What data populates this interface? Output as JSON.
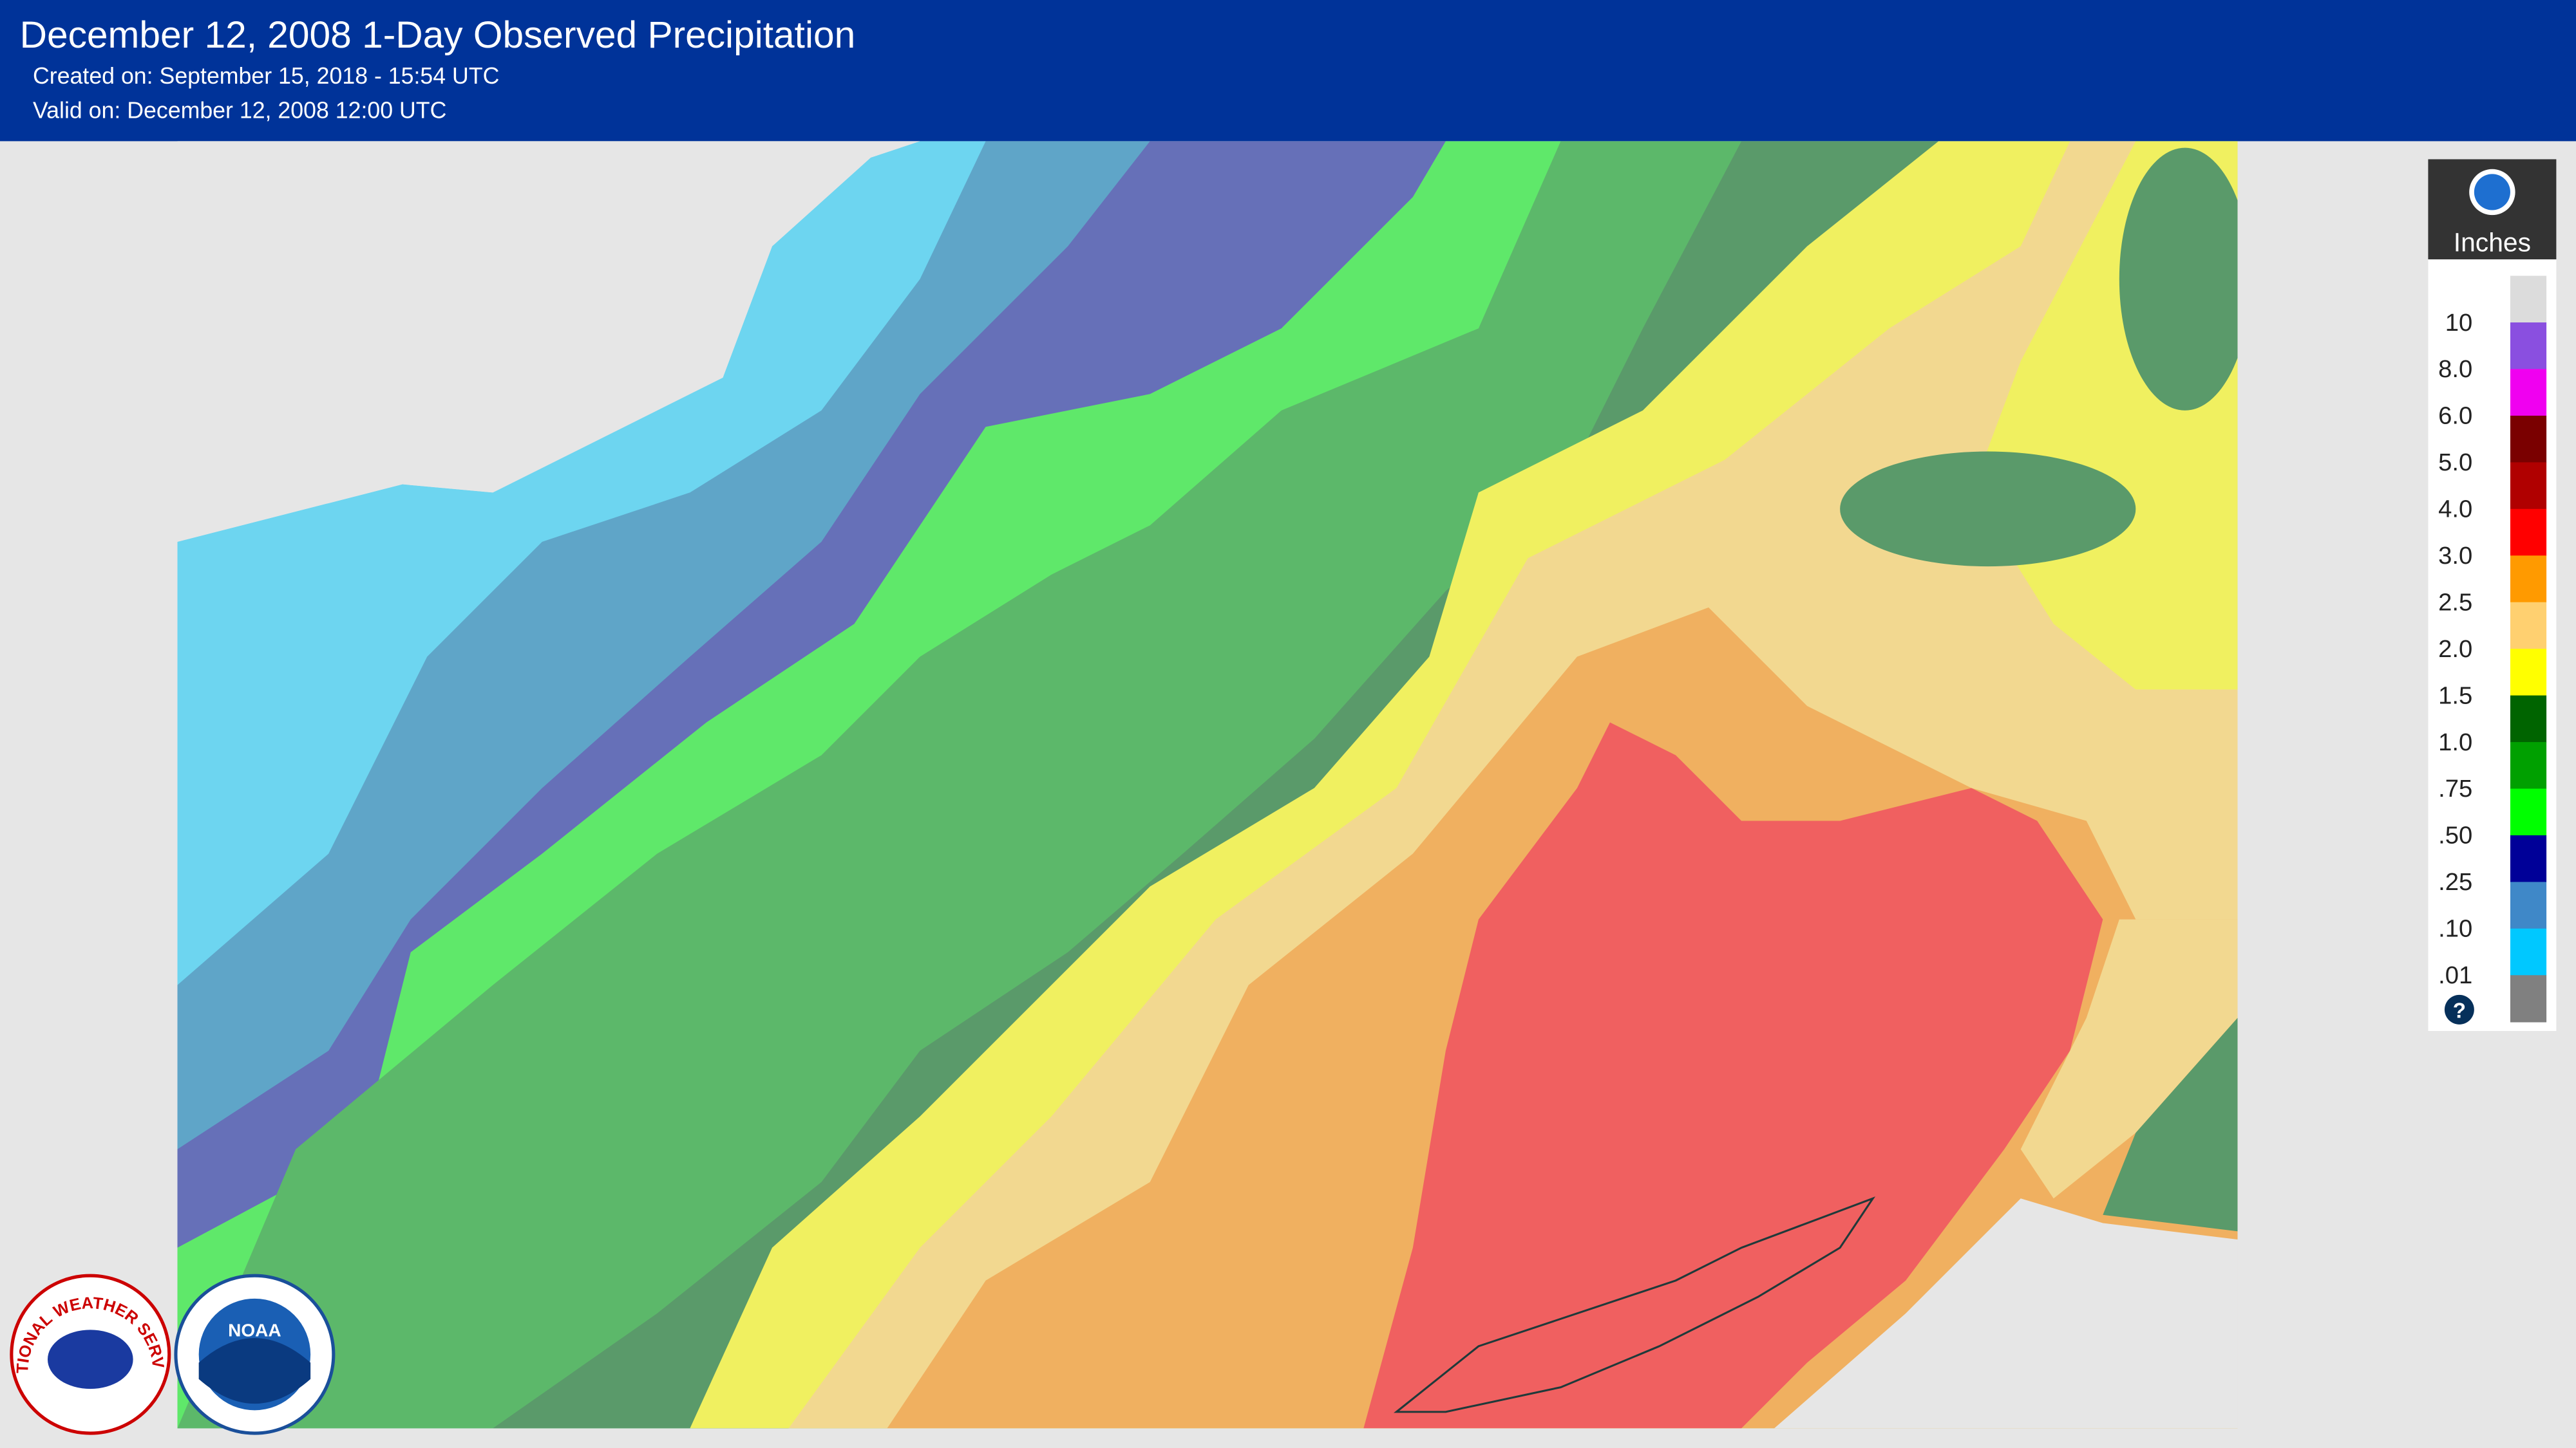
{
  "header": {
    "title": "December 12, 2008 1-Day Observed Precipitation",
    "created": "Created on: September 15, 2018 - 15:54 UTC",
    "valid": "Valid on: December 12, 2008 12:00 UTC"
  },
  "legend": {
    "unit": "Inches",
    "swatches": [
      "#dcdcdc",
      "#8a4fe0",
      "#f000f0",
      "#7a0000",
      "#b00000",
      "#ff0000",
      "#ff9a00",
      "#ffd070",
      "#ffff00",
      "#006400",
      "#00a000",
      "#00ff00",
      "#000098",
      "#3f88c8",
      "#00c8ff",
      "#808080"
    ],
    "labels": [
      "10",
      "8.0",
      "6.0",
      "5.0",
      "4.0",
      "3.0",
      "2.5",
      "2.0",
      "1.5",
      "1.0",
      ".75",
      ".50",
      ".25",
      ".10",
      ".01"
    ],
    "help": "?"
  },
  "logos": {
    "nws": "NATIONAL WEATHER SERVICE",
    "noaa": "NOAA"
  }
}
